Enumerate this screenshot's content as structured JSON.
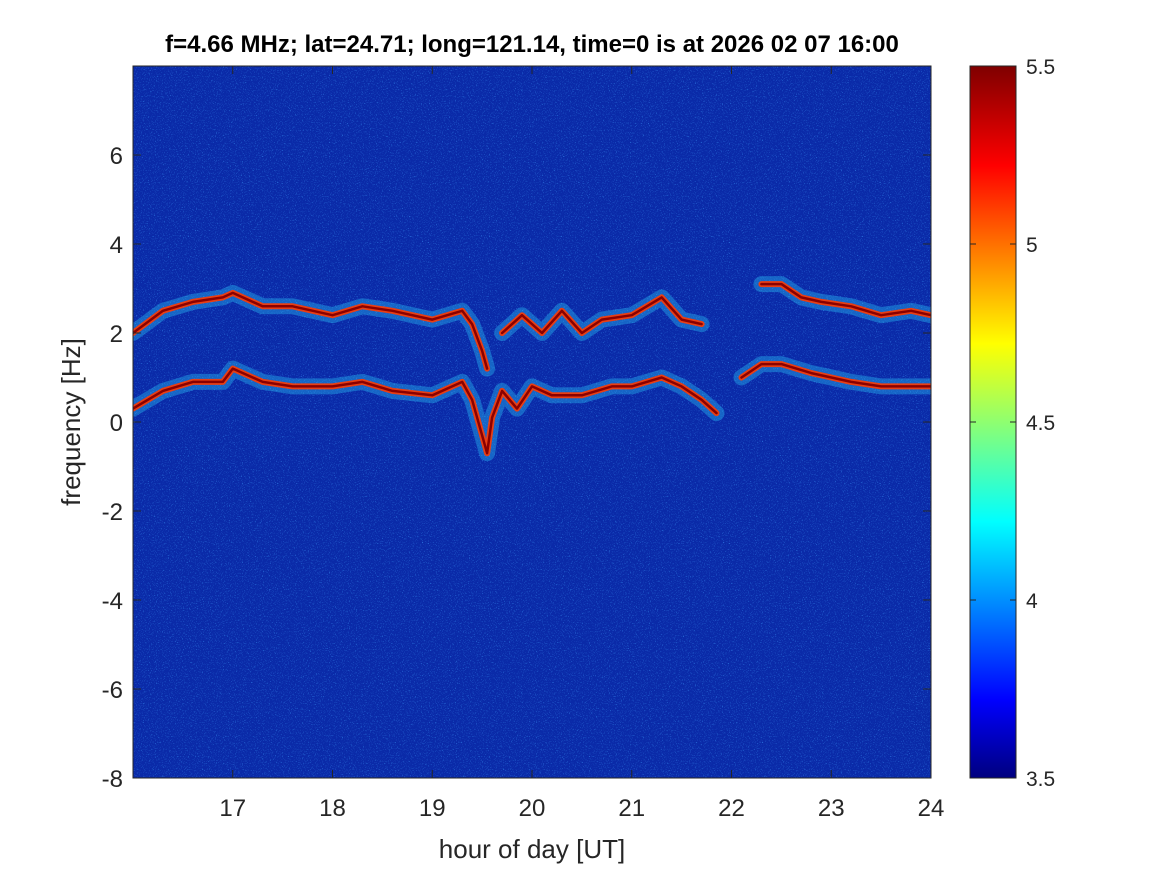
{
  "chart_data": {
    "type": "heatmap",
    "title": "f=4.66 MHz;  lat=24.71; long=121.14, time=0 is at 2026 02 07 16:00",
    "xlabel": "hour of day [UT]",
    "ylabel": "frequency [Hz]",
    "xlim": [
      16,
      24
    ],
    "ylim": [
      -8,
      8
    ],
    "xticks": [
      17,
      18,
      19,
      20,
      21,
      22,
      23,
      24
    ],
    "xtick_labels": [
      "17",
      "18",
      "19",
      "20",
      "21",
      "22",
      "23",
      "24"
    ],
    "yticks": [
      -8,
      -6,
      -4,
      -2,
      0,
      2,
      4,
      6
    ],
    "ytick_labels": [
      "-8",
      "-6",
      "-4",
      "-2",
      "0",
      "2",
      "4",
      "6"
    ],
    "colormap": "jet",
    "clim": [
      3.5,
      5.5
    ],
    "colorbar_ticks": [
      3.5,
      4,
      4.5,
      5,
      5.5
    ],
    "colorbar_tick_labels": [
      "3.5",
      "4",
      "4.5",
      "5",
      "5.5"
    ],
    "background_color": "#0a2aa8",
    "traces": [
      {
        "name": "",
        "x": [
          16.0,
          16.3,
          16.6,
          16.9,
          17.0,
          17.3,
          17.6,
          18.0,
          18.3,
          18.6,
          19.0,
          19.3,
          19.4,
          19.5,
          19.55
        ],
        "y": [
          2.0,
          2.5,
          2.7,
          2.8,
          2.9,
          2.6,
          2.6,
          2.4,
          2.6,
          2.5,
          2.3,
          2.5,
          2.2,
          1.6,
          1.2
        ]
      },
      {
        "name": "",
        "x": [
          19.7,
          19.9,
          20.1,
          20.3,
          20.5,
          20.7,
          21.0,
          21.3,
          21.5,
          21.7
        ],
        "y": [
          2.0,
          2.4,
          2.0,
          2.5,
          2.0,
          2.3,
          2.4,
          2.8,
          2.3,
          2.2
        ]
      },
      {
        "name": "",
        "x": [
          22.3,
          22.5,
          22.7,
          22.9,
          23.2,
          23.5,
          23.8,
          24.0
        ],
        "y": [
          3.1,
          3.1,
          2.8,
          2.7,
          2.6,
          2.4,
          2.5,
          2.4
        ]
      },
      {
        "name": "",
        "x": [
          16.0,
          16.3,
          16.6,
          16.9,
          17.0,
          17.3,
          17.6,
          18.0,
          18.3,
          18.6,
          19.0,
          19.3,
          19.4,
          19.5,
          19.55,
          19.6,
          19.7,
          19.85,
          20.0,
          20.2,
          20.5,
          20.8,
          21.0,
          21.3,
          21.5,
          21.7,
          21.85
        ],
        "y": [
          0.3,
          0.7,
          0.9,
          0.9,
          1.2,
          0.9,
          0.8,
          0.8,
          0.9,
          0.7,
          0.6,
          0.9,
          0.5,
          -0.3,
          -0.7,
          0.1,
          0.7,
          0.3,
          0.8,
          0.6,
          0.6,
          0.8,
          0.8,
          1.0,
          0.8,
          0.5,
          0.2
        ]
      },
      {
        "name": "",
        "x": [
          22.1,
          22.3,
          22.5,
          22.8,
          23.0,
          23.2,
          23.5,
          23.8,
          24.0
        ],
        "y": [
          1.0,
          1.3,
          1.3,
          1.1,
          1.0,
          0.9,
          0.8,
          0.8,
          0.8
        ]
      }
    ]
  }
}
